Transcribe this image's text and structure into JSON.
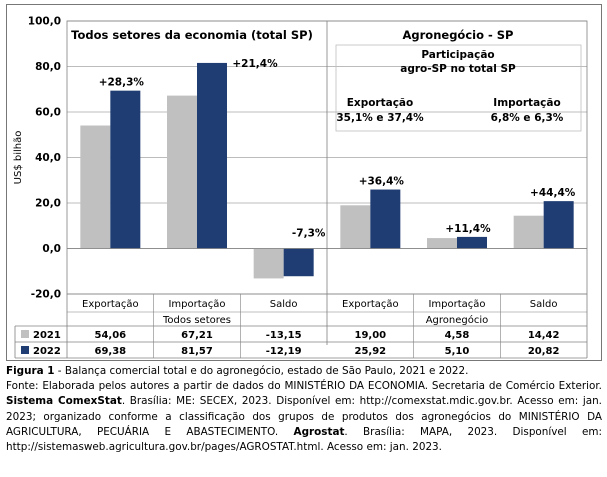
{
  "chart_data": {
    "type": "bar",
    "ylabel": "US$ bilhão",
    "ylim": [
      -20,
      100
    ],
    "yticks": [
      "-20,0",
      "0,0",
      "20,0",
      "40,0",
      "60,0",
      "80,0",
      "100,0"
    ],
    "grid": true,
    "groups": [
      {
        "name": "Todos setores",
        "categories": [
          "Exportação",
          "Importação",
          "Saldo"
        ]
      },
      {
        "name": "Agronegócio",
        "categories": [
          "Exportação",
          "Importação",
          "Saldo"
        ]
      }
    ],
    "series": [
      {
        "name": "2021",
        "color": "#c0c0c0",
        "values": [
          54.06,
          67.21,
          -13.15,
          19.0,
          4.58,
          14.42
        ],
        "labels": [
          "54,06",
          "67,21",
          "-13,15",
          "19,00",
          "4,58",
          "14,42"
        ]
      },
      {
        "name": "2022",
        "color": "#1f3c73",
        "values": [
          69.38,
          81.57,
          -12.19,
          25.92,
          5.1,
          20.82
        ],
        "labels": [
          "69,38",
          "81,57",
          "-12,19",
          "25,92",
          "5,10",
          "20,82"
        ]
      }
    ],
    "change_labels": [
      "+28,3%",
      "+21,4%",
      "-7,3%",
      "+36,4%",
      "+11,4%",
      "+44,4%"
    ],
    "annotations": {
      "left_title": "Todos setores da economia (total SP)",
      "right_title": "Agronegócio - SP",
      "participacao_line1": "Participação",
      "participacao_line2": "agro-SP no total SP",
      "export_label": "Exportação",
      "export_value": "35,1% e 37,4%",
      "import_label": "Importação",
      "import_value": "6,8% e 6,3%"
    }
  },
  "caption": {
    "figure_label": "Figura 1",
    "figure_text": " - Balança comercial total e do agronegócio, estado de São Paulo, 2021 e 2022.",
    "source_prefix": "Fonte: Elaborada pelos autores a partir de dados do MINISTÉRIO DA ECONOMIA. Secretaria de Comércio Exterior. ",
    "source_bold_1": "Sistema ComexStat",
    "source_mid": ". Brasília: ME: SECEX, 2023. Disponível em: http://comexstat.mdic.gov.br. Acesso em: jan. 2023; organizado conforme a classificação dos grupos de produtos dos agronegócios do MINISTÉRIO DA AGRICULTURA, PECUÁRIA E ABASTECIMENTO. ",
    "source_bold_2": "Agrostat",
    "source_end": ". Brasília: MAPA, 2023. Disponível em: http://sistemasweb.agricultura.gov.br/pages/AGROSTAT.html. Acesso em: jan. 2023."
  }
}
